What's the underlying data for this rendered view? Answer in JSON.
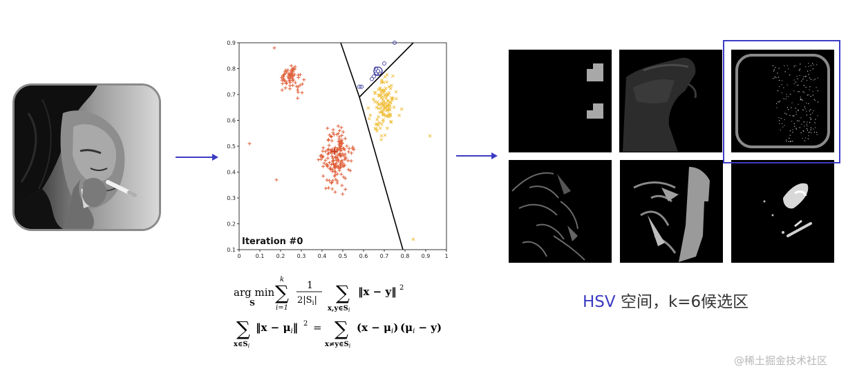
{
  "scatter": {
    "annotation": "Iteration #0",
    "x_ticks": [
      "0",
      "0.1",
      "0.2",
      "0.3",
      "0.4",
      "0.5",
      "0.6",
      "0.7",
      "0.8",
      "0.9",
      "1"
    ],
    "y_ticks": [
      "0.1",
      "0.2",
      "0.3",
      "0.4",
      "0.5",
      "0.6",
      "0.7",
      "0.8",
      "0.9"
    ],
    "colors": {
      "cluster_a": "#e0603a",
      "cluster_b": "#f0c040",
      "cluster_c": "#4a4aa8",
      "boundary": "#000000"
    }
  },
  "formula": {
    "line1": {
      "op": "arg min",
      "op_sub": "S",
      "sum_sup": "k",
      "sum_sub": "i=1",
      "frac_num": "1",
      "frac_den": "2|S",
      "frac_den_sub": "i",
      "frac_den_end": "|",
      "sum2_sub": "x,y∈S",
      "sum2_sub_i": "i",
      "norm": "‖x − y‖",
      "power": "2"
    },
    "line2": {
      "lhs_sub": "x∈S",
      "lhs_sub_i": "i",
      "lhs_norm": "‖x − μ",
      "lhs_norm_i": "i",
      "lhs_norm_end": "‖",
      "power": "2",
      "eq": "=",
      "rhs_sub": "x≠y∈S",
      "rhs_sub_i": "i",
      "rhs_a": "(x − μ",
      "rhs_a_i": "i",
      "rhs_a_end": ")",
      "rhs_b": "(μ",
      "rhs_b_i": "i",
      "rhs_b_end": " − y)"
    }
  },
  "caption": {
    "highlight": "HSV",
    "rest": " 空间，k=6候选区"
  },
  "watermark": "@稀土掘金技术社区",
  "accent_color": "#3b3bc4"
}
